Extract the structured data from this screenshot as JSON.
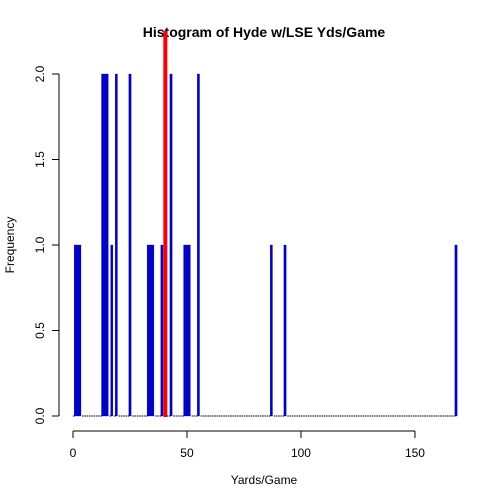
{
  "chart_data": {
    "type": "bar",
    "title": "Histogram of Hyde w/LSE Yds/Game",
    "xlabel": "Yards/Game",
    "ylabel": "Frequency",
    "xlim": [
      0,
      168
    ],
    "ylim": [
      0,
      2
    ],
    "x_ticks": [
      0,
      50,
      100,
      150
    ],
    "x_tick_labels": [
      "0",
      "50",
      "100",
      "150"
    ],
    "y_ticks": [
      0.0,
      0.5,
      1.0,
      1.5,
      2.0
    ],
    "y_tick_labels": [
      "0.0",
      "0.5",
      "1.0",
      "1.5",
      "2.0"
    ],
    "bin_width": 1,
    "bins": [
      {
        "x": 1,
        "count": 1
      },
      {
        "x": 2,
        "count": 1
      },
      {
        "x": 3,
        "count": 1
      },
      {
        "x": 13,
        "count": 2
      },
      {
        "x": 14,
        "count": 2
      },
      {
        "x": 15,
        "count": 2
      },
      {
        "x": 17,
        "count": 1
      },
      {
        "x": 19,
        "count": 2
      },
      {
        "x": 25,
        "count": 2
      },
      {
        "x": 33,
        "count": 1
      },
      {
        "x": 34,
        "count": 1
      },
      {
        "x": 35,
        "count": 1
      },
      {
        "x": 39,
        "count": 1
      },
      {
        "x": 43,
        "count": 2
      },
      {
        "x": 49,
        "count": 1
      },
      {
        "x": 50,
        "count": 1
      },
      {
        "x": 51,
        "count": 1
      },
      {
        "x": 55,
        "count": 2
      },
      {
        "x": 87,
        "count": 1
      },
      {
        "x": 93,
        "count": 1
      },
      {
        "x": 168,
        "count": 1
      }
    ],
    "reference_line": {
      "x": 40.5,
      "color": "#ff0000"
    },
    "bar_color": "#0000cc",
    "grid": false,
    "legend": "none"
  }
}
